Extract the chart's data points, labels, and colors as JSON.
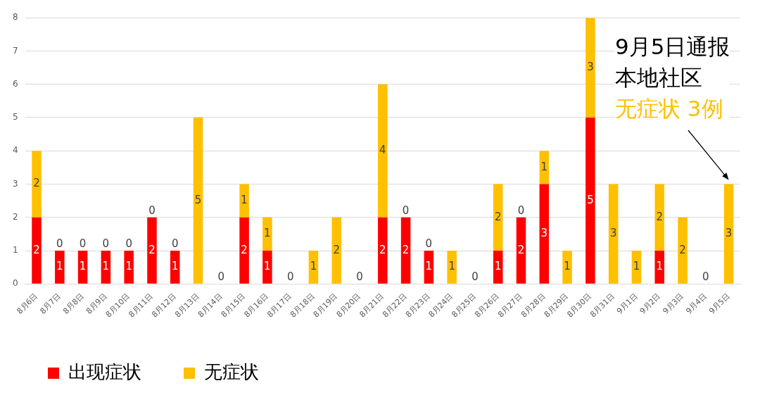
{
  "chart_data": {
    "type": "bar",
    "stacked": true,
    "grid": "y",
    "legend": "bottom left",
    "categories": [
      "8月6日",
      "8月7日",
      "8月8日",
      "8月9日",
      "8月10日",
      "8月11日",
      "8月12日",
      "8月13日",
      "8月14日",
      "8月15日",
      "8月16日",
      "8月17日",
      "8月18日",
      "8月19日",
      "8月20日",
      "8月21日",
      "8月22日",
      "8月23日",
      "8月24日",
      "8月25日",
      "8月26日",
      "8月27日",
      "8月28日",
      "8月29日",
      "8月30日",
      "8月31日",
      "9月1日",
      "9月2日",
      "9月3日",
      "9月4日",
      "9月5日"
    ],
    "series": [
      {
        "name": "出现症状",
        "color": "#ff0000",
        "values": [
          2,
          1,
          1,
          1,
          1,
          2,
          1,
          0,
          0,
          2,
          1,
          0,
          0,
          0,
          0,
          2,
          2,
          1,
          0,
          0,
          1,
          2,
          3,
          0,
          5,
          0,
          0,
          1,
          0,
          0,
          0
        ],
        "value_labels": [
          "2",
          "1",
          "1",
          "1",
          "1",
          "2",
          "1",
          null,
          "0",
          "2",
          "1",
          "0",
          null,
          null,
          "0",
          "2",
          "2",
          "1",
          null,
          "0",
          "1",
          "2",
          "3",
          null,
          "5",
          null,
          null,
          "1",
          null,
          "0",
          null
        ]
      },
      {
        "name": "无症状",
        "color": "#ffc000",
        "values": [
          2,
          0,
          0,
          0,
          0,
          0,
          0,
          5,
          0,
          1,
          1,
          0,
          1,
          2,
          0,
          4,
          0,
          0,
          1,
          0,
          2,
          0,
          1,
          1,
          3,
          3,
          1,
          2,
          2,
          0,
          3
        ],
        "value_labels": [
          "2",
          "0",
          "0",
          "0",
          "0",
          "0",
          "0",
          "5",
          null,
          "1",
          "1",
          null,
          "1",
          "2",
          null,
          "4",
          "0",
          "0",
          "1",
          null,
          "2",
          "0",
          "1",
          "1",
          "3",
          "3",
          "1",
          "2",
          "2",
          null,
          "3"
        ]
      }
    ],
    "ylim": [
      0,
      8
    ],
    "yticks": [
      0,
      1,
      2,
      3,
      4,
      5,
      6,
      7,
      8
    ],
    "annotations": [
      "9月5日通报",
      "本地社区",
      {
        "text": "无症状 3例",
        "x": "9月5日",
        "y": 3
      }
    ]
  }
}
